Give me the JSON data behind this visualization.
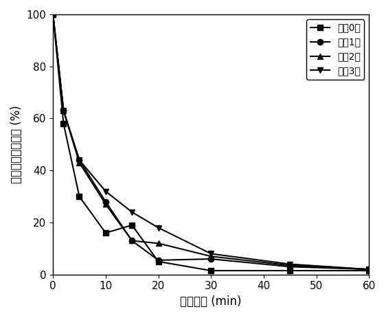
{
  "title": "",
  "xlabel": "反应时间 (min)",
  "ylabel": "氯嗪素剩余百分比 (%)",
  "xlim": [
    0,
    60
  ],
  "ylim": [
    0,
    100
  ],
  "xticks": [
    0,
    10,
    20,
    30,
    40,
    50,
    60
  ],
  "yticks": [
    0,
    20,
    40,
    60,
    80,
    100
  ],
  "series": [
    {
      "label": "回用0次",
      "x": [
        0,
        2,
        5,
        10,
        15,
        20,
        30,
        45,
        60
      ],
      "y": [
        100,
        58,
        30,
        16,
        19,
        5,
        1.5,
        1.5,
        1.5
      ],
      "marker": "s",
      "color": "#000000"
    },
    {
      "label": "回用1次",
      "x": [
        0,
        2,
        5,
        10,
        15,
        20,
        30,
        45,
        60
      ],
      "y": [
        100,
        63,
        44,
        28,
        13,
        5.5,
        6,
        3,
        2
      ],
      "marker": "o",
      "color": "#000000"
    },
    {
      "label": "回用2次",
      "x": [
        0,
        2,
        5,
        10,
        15,
        20,
        30,
        45,
        60
      ],
      "y": [
        100,
        63,
        43,
        27,
        13,
        12,
        7,
        3.5,
        2
      ],
      "marker": "^",
      "color": "#000000"
    },
    {
      "label": "回用3次",
      "x": [
        0,
        2,
        5,
        10,
        15,
        20,
        30,
        45,
        60
      ],
      "y": [
        100,
        63,
        44,
        32,
        24,
        18,
        8,
        4,
        2
      ],
      "marker": "v",
      "color": "#000000"
    }
  ],
  "linewidth": 1.5,
  "markersize": 6,
  "background_color": "#ffffff",
  "legend_loc": "upper right",
  "legend_fontsize": 10,
  "axis_fontsize": 12,
  "tick_fontsize": 11
}
